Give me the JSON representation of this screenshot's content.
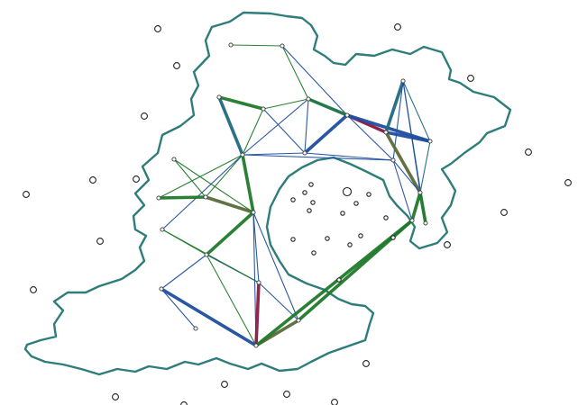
{
  "map": {
    "colors": {
      "coastline": "#2e7d7b",
      "link_green": "#1f7a2a",
      "link_blue": "#1f4fa0",
      "link_teal": "#1f6a82",
      "link_crimson": "#8e1b46",
      "link_olive": "#5b6b3a",
      "node_fill": "#ffffff",
      "node_stroke": "#333333"
    },
    "nodes": [
      {
        "id": "n1",
        "kind": "station"
      },
      {
        "id": "n2",
        "kind": "station"
      },
      {
        "id": "n3",
        "kind": "station"
      },
      {
        "id": "n4",
        "kind": "station"
      },
      {
        "id": "n5",
        "kind": "station"
      },
      {
        "id": "n6",
        "kind": "station"
      },
      {
        "id": "n7",
        "kind": "station"
      },
      {
        "id": "n8",
        "kind": "station"
      },
      {
        "id": "n9",
        "kind": "station"
      },
      {
        "id": "n10",
        "kind": "station"
      },
      {
        "id": "n11",
        "kind": "station"
      },
      {
        "id": "n12",
        "kind": "station"
      },
      {
        "id": "n13",
        "kind": "station"
      },
      {
        "id": "n14",
        "kind": "station"
      },
      {
        "id": "n15",
        "kind": "station"
      },
      {
        "id": "n16",
        "kind": "station"
      },
      {
        "id": "n17",
        "kind": "station"
      },
      {
        "id": "n18",
        "kind": "station"
      },
      {
        "id": "n19",
        "kind": "station"
      },
      {
        "id": "n20",
        "kind": "station"
      },
      {
        "id": "n21",
        "kind": "station"
      },
      {
        "id": "n22",
        "kind": "station"
      },
      {
        "id": "n23",
        "kind": "station"
      },
      {
        "id": "n24",
        "kind": "station"
      },
      {
        "id": "n25",
        "kind": "station"
      }
    ],
    "links": [
      {
        "from": "n1",
        "to": "n2",
        "color": "green",
        "weight": 1
      },
      {
        "from": "n2",
        "to": "n5",
        "color": "green",
        "weight": 1
      },
      {
        "from": "n2",
        "to": "n6",
        "color": "blue",
        "weight": 1
      },
      {
        "from": "n3",
        "to": "n4",
        "color": "green",
        "weight": 3
      },
      {
        "from": "n3",
        "to": "n8",
        "color": "teal",
        "weight": 3
      },
      {
        "from": "n4",
        "to": "n5",
        "color": "green",
        "weight": 1
      },
      {
        "from": "n4",
        "to": "n8",
        "color": "green",
        "weight": 1
      },
      {
        "from": "n4",
        "to": "n9",
        "color": "blue",
        "weight": 1
      },
      {
        "from": "n5",
        "to": "n6",
        "color": "green",
        "weight": 3
      },
      {
        "from": "n5",
        "to": "n8",
        "color": "blue",
        "weight": 1
      },
      {
        "from": "n5",
        "to": "n9",
        "color": "blue",
        "weight": 1
      },
      {
        "from": "n5",
        "to": "n10",
        "color": "teal",
        "weight": 1
      },
      {
        "from": "n6",
        "to": "n10",
        "color": "crimson",
        "weight": 3
      },
      {
        "from": "n6",
        "to": "n9",
        "color": "blue",
        "weight": 3
      },
      {
        "from": "n6",
        "to": "n11",
        "color": "blue",
        "weight": 3
      },
      {
        "from": "n6",
        "to": "n12",
        "color": "blue",
        "weight": 1
      },
      {
        "from": "n7",
        "to": "n10",
        "color": "teal",
        "weight": 3
      },
      {
        "from": "n7",
        "to": "n11",
        "color": "teal",
        "weight": 1
      },
      {
        "from": "n7",
        "to": "n12",
        "color": "blue",
        "weight": 1
      },
      {
        "from": "n7",
        "to": "n13",
        "color": "blue",
        "weight": 1
      },
      {
        "from": "n7",
        "to": "n14",
        "color": "blue",
        "weight": 1
      },
      {
        "from": "n8",
        "to": "n9",
        "color": "blue",
        "weight": 1
      },
      {
        "from": "n8",
        "to": "n12",
        "color": "blue",
        "weight": 1
      },
      {
        "from": "n8",
        "to": "n15",
        "color": "green",
        "weight": 1
      },
      {
        "from": "n8",
        "to": "n16",
        "color": "green",
        "weight": 1
      },
      {
        "from": "n8",
        "to": "n18",
        "color": "green",
        "weight": 3
      },
      {
        "from": "n8",
        "to": "n20",
        "color": "blue",
        "weight": 1
      },
      {
        "from": "n9",
        "to": "n12",
        "color": "blue",
        "weight": 1
      },
      {
        "from": "n10",
        "to": "n11",
        "color": "blue",
        "weight": 3
      },
      {
        "from": "n10",
        "to": "n13",
        "color": "olive",
        "weight": 3
      },
      {
        "from": "n11",
        "to": "n13",
        "color": "teal",
        "weight": 1
      },
      {
        "from": "n12",
        "to": "n13",
        "color": "blue",
        "weight": 1
      },
      {
        "from": "n13",
        "to": "n14",
        "color": "green",
        "weight": 3
      },
      {
        "from": "n13",
        "to": "n25",
        "color": "green",
        "weight": 3
      },
      {
        "from": "n12",
        "to": "n25",
        "color": "blue",
        "weight": 1
      },
      {
        "from": "n15",
        "to": "n16",
        "color": "green",
        "weight": 3
      },
      {
        "from": "n16",
        "to": "n17",
        "color": "green",
        "weight": 1
      },
      {
        "from": "n16",
        "to": "n18",
        "color": "olive",
        "weight": 3
      },
      {
        "from": "n17",
        "to": "n18",
        "color": "green",
        "weight": 1
      },
      {
        "from": "n18",
        "to": "n19",
        "color": "green",
        "weight": 3
      },
      {
        "from": "n18",
        "to": "n21",
        "color": "blue",
        "weight": 1
      },
      {
        "from": "n18",
        "to": "n22",
        "color": "blue",
        "weight": 1
      },
      {
        "from": "n18",
        "to": "n23",
        "color": "blue",
        "weight": 1
      },
      {
        "from": "n19",
        "to": "n20",
        "color": "green",
        "weight": 1
      },
      {
        "from": "n19",
        "to": "n24",
        "color": "blue",
        "weight": 1
      },
      {
        "from": "n19",
        "to": "n21",
        "color": "blue",
        "weight": 1
      },
      {
        "from": "n20",
        "to": "n21",
        "color": "green",
        "weight": 1
      },
      {
        "from": "n19",
        "to": "n22",
        "color": "green",
        "weight": 1
      },
      {
        "from": "n21",
        "to": "n22",
        "color": "crimson",
        "weight": 3
      },
      {
        "from": "n21",
        "to": "n23",
        "color": "blue",
        "weight": 1
      },
      {
        "from": "n22",
        "to": "n23",
        "color": "olive",
        "weight": 3
      },
      {
        "from": "n22",
        "to": "n25",
        "color": "green",
        "weight": 3
      },
      {
        "from": "n23",
        "to": "n25",
        "color": "green",
        "weight": 3
      },
      {
        "from": "n24",
        "to": "n22",
        "color": "blue",
        "weight": 3
      },
      {
        "from": "n24",
        "to": "n22b",
        "color": "blue",
        "weight": 1
      }
    ],
    "offshore_sites_count": 34
  }
}
